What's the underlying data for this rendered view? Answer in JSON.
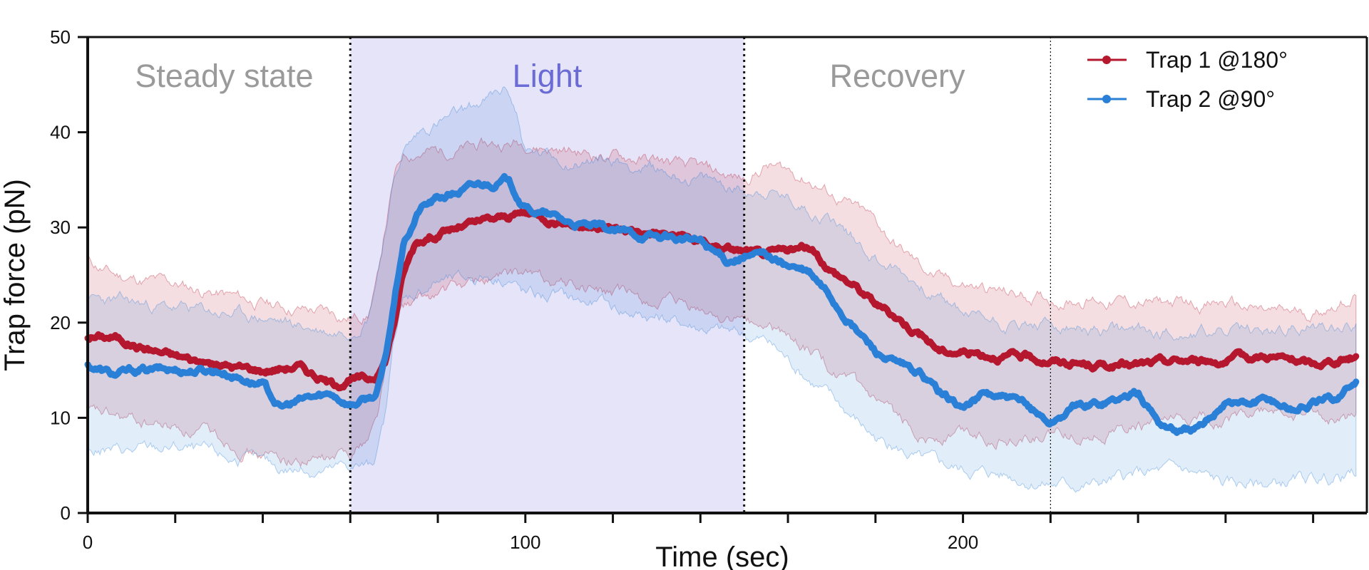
{
  "chart_data": {
    "type": "line",
    "xlabel": "Time (sec)",
    "ylabel": "Trap force (pN)",
    "xlim": [
      0,
      290
    ],
    "ylim": [
      0,
      50
    ],
    "x_ticks_labeled": [
      0,
      100,
      200
    ],
    "x_ticks_minor": [
      20,
      40,
      60,
      80,
      120,
      140,
      160,
      180,
      220,
      240,
      260,
      280
    ],
    "y_ticks": [
      0,
      10,
      20,
      30,
      40,
      50
    ],
    "phases": [
      {
        "label": "Steady state",
        "start": 0,
        "end": 60,
        "color": "#9a9a9a"
      },
      {
        "label": "Light",
        "start": 60,
        "end": 150,
        "color": "#6b6bd6",
        "shade": "#e6e4f8"
      },
      {
        "label": "Recovery",
        "start": 150,
        "end": 220,
        "color": "#9a9a9a"
      }
    ],
    "dividers": [
      60,
      150,
      220
    ],
    "legend_position": "top-right",
    "series": [
      {
        "name": "Trap 1 @180°",
        "color": "#b5172e",
        "x": [
          0,
          6,
          12,
          20,
          30,
          40,
          48,
          56,
          60,
          64,
          66,
          68,
          70,
          72,
          75,
          80,
          90,
          100,
          110,
          120,
          130,
          140,
          150,
          155,
          160,
          165,
          170,
          175,
          180,
          185,
          190,
          195,
          200,
          210,
          220,
          230,
          240,
          250,
          260,
          270,
          280,
          290
        ],
        "y": [
          18.5,
          18.5,
          17.5,
          16.5,
          15.5,
          15,
          15.5,
          13.5,
          14,
          14,
          14.5,
          16,
          20,
          25,
          28.5,
          29.5,
          30.5,
          31.5,
          30.5,
          29.8,
          29.5,
          28.5,
          27.5,
          27,
          27.5,
          27.8,
          25.5,
          24,
          22,
          20.5,
          19,
          17,
          17,
          16.5,
          16,
          15.5,
          15.5,
          16,
          16,
          16.5,
          15.5,
          16.5
        ],
        "upper": [
          26.5,
          25,
          24.5,
          24,
          23,
          22,
          21.5,
          21,
          20.5,
          21,
          24,
          30,
          35,
          37.5,
          38,
          38,
          38.5,
          39,
          38,
          37.5,
          37,
          36,
          35,
          36.5,
          36,
          35,
          33.5,
          32,
          30.5,
          28,
          26,
          24.5,
          24,
          23,
          22.5,
          22.5,
          22,
          22,
          22,
          21,
          21,
          23
        ],
        "lower": [
          10.5,
          10,
          9.5,
          9,
          8,
          6,
          5.5,
          5.5,
          6.5,
          8,
          10,
          15,
          20,
          21.5,
          22,
          23,
          24.5,
          25,
          24,
          23,
          22,
          21,
          20,
          19.5,
          18.5,
          17,
          15,
          13,
          11,
          9.5,
          8.5,
          8,
          8.5,
          8,
          8,
          8.5,
          9,
          9.5,
          10,
          10.5,
          10,
          10
        ]
      },
      {
        "name": "Trap 2 @90°",
        "color": "#2a7fd6",
        "x": [
          0,
          6,
          12,
          20,
          30,
          40,
          44,
          50,
          56,
          60,
          64,
          66,
          68,
          70,
          72,
          76,
          80,
          90,
          96,
          100,
          110,
          120,
          130,
          140,
          146,
          150,
          155,
          160,
          165,
          170,
          175,
          180,
          185,
          190,
          195,
          200,
          205,
          210,
          215,
          220,
          225,
          230,
          240,
          245,
          250,
          255,
          260,
          265,
          270,
          275,
          280,
          285,
          290
        ],
        "y": [
          15.5,
          14.5,
          15,
          15,
          15,
          13.5,
          11,
          12,
          12.5,
          11.5,
          12,
          12.5,
          16,
          22,
          28,
          32,
          33,
          34.5,
          35,
          32,
          30.5,
          29.5,
          29,
          28.5,
          26.5,
          27,
          27,
          26,
          25,
          22.5,
          19.5,
          17,
          15.5,
          14.5,
          12.5,
          11,
          12.5,
          12,
          11,
          9.5,
          11,
          11.5,
          12.5,
          9.5,
          8.5,
          9,
          12,
          11.5,
          12,
          11,
          11.5,
          12,
          14
        ]
      }
    ],
    "band_trap2": {
      "x": [
        0,
        10,
        20,
        30,
        40,
        50,
        56,
        60,
        64,
        66,
        68,
        70,
        72,
        76,
        80,
        86,
        90,
        96,
        98,
        100,
        110,
        120,
        130,
        140,
        150,
        155,
        160,
        170,
        180,
        190,
        200,
        210,
        220,
        230,
        240,
        250,
        260,
        270,
        280,
        290
      ],
      "upper": [
        22.5,
        22,
        21.5,
        21,
        20.5,
        19.5,
        19,
        19.5,
        21,
        25,
        30,
        35,
        38,
        40,
        41,
        42,
        43,
        44.5,
        42,
        38,
        37,
        37,
        36,
        35,
        34,
        34,
        33,
        31,
        27,
        24,
        21,
        20,
        19.5,
        19,
        19,
        19,
        19,
        19,
        19.5,
        20
      ],
      "lower": [
        6.5,
        6.5,
        7,
        6,
        5,
        4.5,
        4.5,
        5,
        5,
        6,
        10,
        18,
        22,
        23.5,
        24.5,
        24.5,
        25,
        25,
        24,
        23,
        22.5,
        21.5,
        20.5,
        19.5,
        18.5,
        18,
        16,
        12,
        8,
        5.5,
        4.5,
        4,
        3,
        3,
        4,
        4.5,
        3,
        3,
        3.5,
        4
      ]
    }
  }
}
